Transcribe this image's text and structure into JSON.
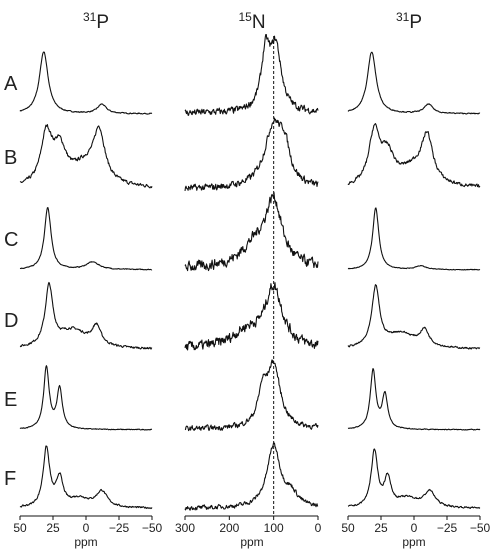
{
  "chart_data": {
    "type": "line",
    "row_labels": [
      "A",
      "B",
      "C",
      "D",
      "E",
      "F"
    ],
    "reference_line": {
      "column": 1,
      "x": 100
    },
    "panels": [
      {
        "title": {
          "sup": "31",
          "main": "P"
        },
        "xlabel": "ppm",
        "xlim": [
          50,
          -50
        ],
        "ticks": [
          50,
          25,
          0,
          -25,
          -50
        ],
        "tick_labels": [
          "50",
          "25",
          "0",
          "−25",
          "−50"
        ],
        "rows": [
          {
            "peaks": [
              [
                32,
                1.0,
                4
              ],
              [
                -12,
                0.15,
                4
              ]
            ],
            "base": 0.02,
            "noise": 0.012
          },
          {
            "peaks": [
              [
                30,
                0.8,
                5
              ],
              [
                20,
                0.55,
                6
              ],
              [
                -10,
                0.75,
                5
              ],
              [
                0,
                0.35,
                14
              ]
            ],
            "base": 0.12,
            "noise": 0.04
          },
          {
            "peaks": [
              [
                29,
                1.0,
                3
              ],
              [
                -5,
                0.12,
                6
              ]
            ],
            "base": 0.03,
            "noise": 0.01
          },
          {
            "peaks": [
              [
                28,
                0.95,
                3.5
              ],
              [
                10,
                0.3,
                14
              ],
              [
                -8,
                0.3,
                4
              ]
            ],
            "base": 0.05,
            "noise": 0.025
          },
          {
            "peaks": [
              [
                30,
                1.0,
                2.5
              ],
              [
                20,
                0.65,
                2.5
              ]
            ],
            "base": 0.03,
            "noise": 0.01
          },
          {
            "peaks": [
              [
                30,
                0.95,
                3
              ],
              [
                20,
                0.45,
                3
              ],
              [
                5,
                0.15,
                10
              ],
              [
                -12,
                0.25,
                5
              ]
            ],
            "base": 0.06,
            "noise": 0.02
          }
        ]
      },
      {
        "title": {
          "sup": "15",
          "main": "N"
        },
        "xlabel": "ppm",
        "xlim": [
          300,
          0
        ],
        "ticks": [
          300,
          200,
          100,
          0
        ],
        "tick_labels": [
          "300",
          "200",
          "100",
          "0"
        ],
        "rows": [
          {
            "peaks": [
              [
                118,
                0.9,
                12
              ],
              [
                95,
                1.0,
                15
              ]
            ],
            "base": 0.08,
            "noise": 0.08
          },
          {
            "peaks": [
              [
                100,
                1.0,
                25
              ],
              [
                75,
                0.45,
                14
              ]
            ],
            "base": 0.08,
            "noise": 0.08
          },
          {
            "peaks": [
              [
                100,
                1.0,
                22
              ],
              [
                140,
                0.35,
                40
              ]
            ],
            "base": 0.12,
            "noise": 0.12
          },
          {
            "peaks": [
              [
                100,
                0.95,
                24
              ],
              [
                160,
                0.25,
                40
              ]
            ],
            "base": 0.12,
            "noise": 0.12
          },
          {
            "peaks": [
              [
                100,
                1.0,
                18
              ],
              [
                125,
                0.5,
                12
              ]
            ],
            "base": 0.08,
            "noise": 0.06
          },
          {
            "peaks": [
              [
                100,
                1.0,
                18
              ],
              [
                60,
                0.2,
                18
              ]
            ],
            "base": 0.06,
            "noise": 0.05
          }
        ]
      },
      {
        "title": {
          "sup": "31",
          "main": "P"
        },
        "xlabel": "ppm",
        "xlim": [
          50,
          -50
        ],
        "ticks": [
          50,
          25,
          0,
          -25,
          -50
        ],
        "tick_labels": [
          "50",
          "25",
          "0",
          "−25",
          "−50"
        ],
        "rows": [
          {
            "peaks": [
              [
                32,
                1.0,
                4
              ],
              [
                -11,
                0.15,
                4
              ]
            ],
            "base": 0.02,
            "noise": 0.012
          },
          {
            "peaks": [
              [
                30,
                0.85,
                5
              ],
              [
                20,
                0.45,
                6
              ],
              [
                -10,
                0.7,
                5
              ],
              [
                0,
                0.3,
                14
              ]
            ],
            "base": 0.12,
            "noise": 0.04
          },
          {
            "peaks": [
              [
                29,
                1.0,
                2.8
              ],
              [
                -5,
                0.06,
                5
              ]
            ],
            "base": 0.02,
            "noise": 0.008
          },
          {
            "peaks": [
              [
                29,
                0.95,
                3.5
              ],
              [
                10,
                0.25,
                14
              ],
              [
                -8,
                0.25,
                4
              ]
            ],
            "base": 0.05,
            "noise": 0.02
          },
          {
            "peaks": [
              [
                31,
                0.95,
                2.5
              ],
              [
                22,
                0.55,
                2.5
              ]
            ],
            "base": 0.03,
            "noise": 0.01
          },
          {
            "peaks": [
              [
                30,
                0.9,
                3
              ],
              [
                20,
                0.45,
                3
              ],
              [
                5,
                0.15,
                10
              ],
              [
                -12,
                0.25,
                5
              ]
            ],
            "base": 0.06,
            "noise": 0.02
          }
        ]
      }
    ]
  }
}
